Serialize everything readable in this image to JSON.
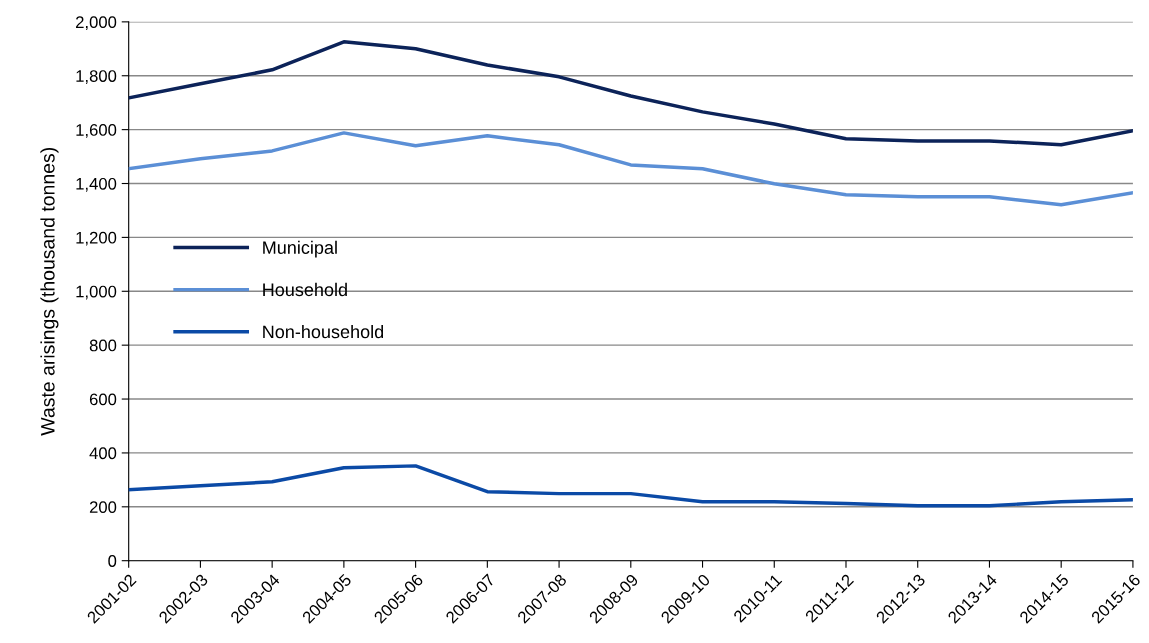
{
  "chart_data": {
    "type": "line",
    "ylabel": "Waste arisings (thousand tonnes)",
    "categories": [
      "2001-02",
      "2002-03",
      "2003-04",
      "2004-05",
      "2005-06",
      "2006-07",
      "2007-08",
      "2008-09",
      "2009-10",
      "2010-11",
      "2011-12",
      "2012-13",
      "2013-14",
      "2014-15",
      "2015-16"
    ],
    "series": [
      {
        "name": "Municipal",
        "color": "#0c2359",
        "values": [
          1718,
          1770,
          1822,
          1926,
          1900,
          1840,
          1796,
          1725,
          1666,
          1621,
          1566,
          1558,
          1558,
          1544,
          1596
        ]
      },
      {
        "name": "Household",
        "color": "#5b8fd6",
        "values": [
          1455,
          1492,
          1521,
          1588,
          1540,
          1577,
          1544,
          1469,
          1455,
          1399,
          1358,
          1351,
          1351,
          1321,
          1366
        ]
      },
      {
        "name": "Non-household",
        "color": "#0b4aa6",
        "values": [
          263,
          278,
          293,
          345,
          352,
          256,
          249,
          249,
          219,
          219,
          212,
          204,
          204,
          219,
          226
        ]
      }
    ],
    "ylim": [
      0,
      2000
    ],
    "yticks": [
      {
        "value": 0,
        "label": "0"
      },
      {
        "value": 200,
        "label": "200"
      },
      {
        "value": 400,
        "label": "400"
      },
      {
        "value": 600,
        "label": "600"
      },
      {
        "value": 800,
        "label": "800"
      },
      {
        "value": 1000,
        "label": "1,000"
      },
      {
        "value": 1200,
        "label": "1,200"
      },
      {
        "value": 1400,
        "label": "1,400"
      },
      {
        "value": 1600,
        "label": "1,600"
      },
      {
        "value": 1800,
        "label": "1,800"
      },
      {
        "value": 2000,
        "label": "2,000"
      }
    ],
    "grid": "y",
    "legend": "center left",
    "marker": "none",
    "line_style": "solid"
  }
}
